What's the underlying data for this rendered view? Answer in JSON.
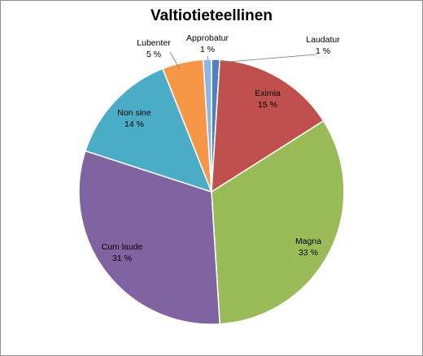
{
  "chart_data": {
    "type": "pie",
    "title": "Valtiotieteellinen",
    "categories": [
      "Laudatur",
      "Eximia",
      "Magna",
      "Cum laude",
      "Non sine",
      "Lubenter",
      "Approbatur"
    ],
    "values": [
      1,
      15,
      33,
      31,
      14,
      5,
      1
    ],
    "value_labels": [
      "1 %",
      "15 %",
      "33 %",
      "31 %",
      "14 %",
      "5 %",
      "1 %"
    ],
    "colors": [
      "#4f81bd",
      "#c0504d",
      "#9bbb59",
      "#8064a2",
      "#4bacc6",
      "#f79646",
      "#8eb4e3"
    ],
    "legend": "none"
  }
}
